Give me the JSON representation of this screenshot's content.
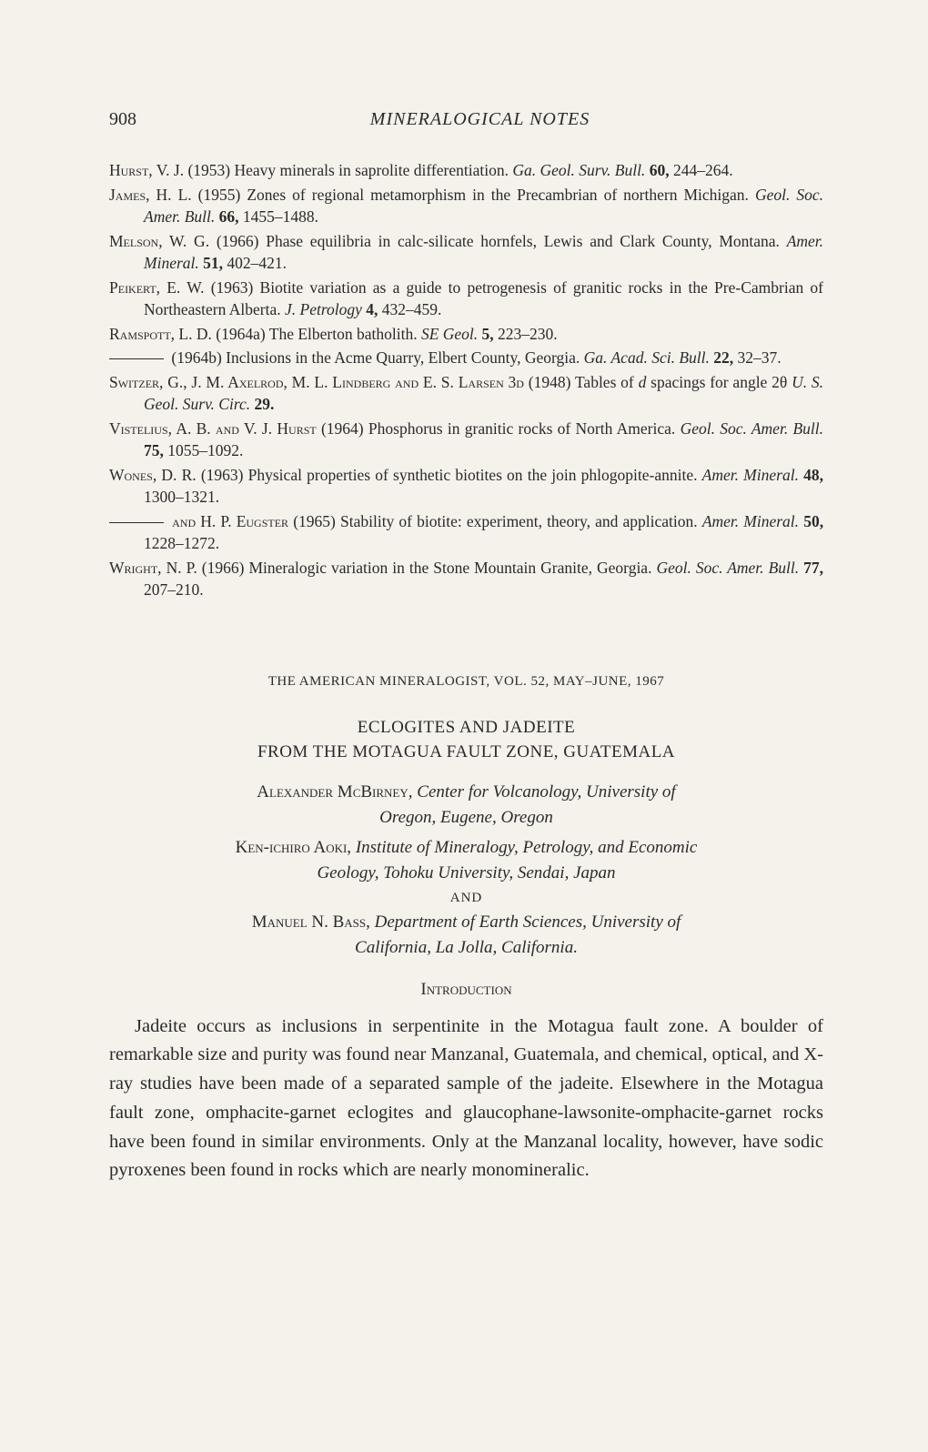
{
  "header": {
    "page_number": "908",
    "title": "MINERALOGICAL NOTES"
  },
  "references": [
    {
      "author": "Hurst, V. J.",
      "year": "(1953)",
      "title": "Heavy minerals in saprolite differentiation.",
      "journal": "Ga. Geol. Surv. Bull.",
      "volume": "60,",
      "pages": "244–264."
    },
    {
      "author": "James, H. L.",
      "year": "(1955)",
      "title": "Zones of regional metamorphism in the Precambrian of northern Michigan.",
      "journal": "Geol. Soc. Amer. Bull.",
      "volume": "66,",
      "pages": "1455–1488."
    },
    {
      "author": "Melson, W. G.",
      "year": "(1966)",
      "title": "Phase equilibria in calc-silicate hornfels, Lewis and Clark County, Montana.",
      "journal": "Amer. Mineral.",
      "volume": "51,",
      "pages": "402–421."
    },
    {
      "author": "Peikert, E. W.",
      "year": "(1963)",
      "title": "Biotite variation as a guide to petrogenesis of granitic rocks in the Pre-Cambrian of Northeastern Alberta.",
      "journal": "J. Petrology",
      "volume": "4,",
      "pages": "432–459."
    },
    {
      "author": "Ramspott, L. D.",
      "year": "(1964a)",
      "title": "The Elberton batholith.",
      "journal": "SE Geol.",
      "volume": "5,",
      "pages": "223–230."
    },
    {
      "dash": true,
      "year": "(1964b)",
      "title": "Inclusions in the Acme Quarry, Elbert County, Georgia.",
      "journal": "Ga. Acad. Sci. Bull.",
      "volume": "22,",
      "pages": "32–37."
    },
    {
      "author": "Switzer, G., J. M. Axelrod, M. L. Lindberg and E. S. Larsen 3d",
      "year": "(1948)",
      "title_before_italic": "Tables of ",
      "title_italic1": "d",
      "title_mid": " spacings for angle 2θ ",
      "journal": "U. S. Geol. Surv. Circ.",
      "volume": "29.",
      "pages": ""
    },
    {
      "author": "Vistelius, A. B. and V. J. Hurst",
      "year": "(1964)",
      "title": "Phosphorus in granitic rocks of North America.",
      "journal": "Geol. Soc. Amer. Bull.",
      "volume": "75,",
      "pages": "1055–1092."
    },
    {
      "author": "Wones, D. R.",
      "year": "(1963)",
      "title": "Physical properties of synthetic biotites on the join phlogopite-annite.",
      "journal": "Amer. Mineral.",
      "volume": "48,",
      "pages": "1300–1321."
    },
    {
      "dash": true,
      "author_after": "and H. P. Eugster",
      "year": "(1965)",
      "title": "Stability of biotite: experiment, theory, and application.",
      "journal": "Amer. Mineral.",
      "volume": "50,",
      "pages": "1228–1272."
    },
    {
      "author": "Wright, N. P.",
      "year": "(1966)",
      "title": "Mineralogic variation in the Stone Mountain Granite, Georgia.",
      "journal": "Geol. Soc. Amer. Bull.",
      "volume": "77,",
      "pages": "207–210."
    }
  ],
  "journal_header": "THE AMERICAN MINERALOGIST, VOL. 52, MAY–JUNE, 1967",
  "article_title_line1": "ECLOGITES AND JADEITE",
  "article_title_line2": "FROM THE MOTAGUA FAULT ZONE, GUATEMALA",
  "authors": [
    {
      "name": "Alexander McBirney,",
      "affiliation_line1": "Center for Volcanology, University of",
      "affiliation_line2": "Oregon, Eugene, Oregon"
    },
    {
      "name": "Ken-ichiro Aoki,",
      "affiliation_line1": "Institute of Mineralogy, Petrology, and Economic",
      "affiliation_line2": "Geology, Tohoku University, Sendai, Japan"
    },
    {
      "name": "Manuel N. Bass,",
      "affiliation_line1": "Department of Earth Sciences, University of",
      "affiliation_line2": "California, La Jolla, California."
    }
  ],
  "and_label": "AND",
  "section_heading": "Introduction",
  "body_paragraph": "Jadeite occurs as inclusions in serpentinite in the Motagua fault zone. A boulder of remarkable size and purity was found near Manzanal, Guatemala, and chemical, optical, and X-ray studies have been made of a separated sample of the jadeite. Elsewhere in the Motagua fault zone, omphacite-garnet eclogites and glaucophane-lawsonite-omphacite-garnet rocks have been found in similar environments. Only at the Manzanal locality, however, have sodic pyroxenes been found in rocks which are nearly monomineralic.",
  "colors": {
    "background": "#f5f2ec",
    "text": "#2a2a2a"
  }
}
